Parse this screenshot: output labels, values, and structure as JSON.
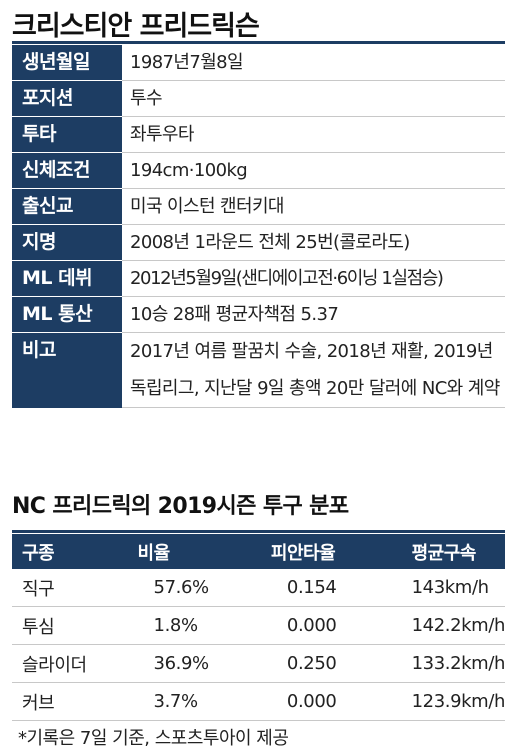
{
  "profile": {
    "title": "크리스티안 프리드릭슨",
    "rows": [
      {
        "label": "생년월일",
        "value": "1987년7월8일"
      },
      {
        "label": "포지션",
        "value": "투수"
      },
      {
        "label": "투타",
        "value": "좌투우타"
      },
      {
        "label": "신체조건",
        "value": "194cm·100kg"
      },
      {
        "label": "출신교",
        "value": "미국 이스턴 캔터키대"
      },
      {
        "label": "지명",
        "value": "2008년 1라운드 전체 25번(콜로라도)"
      },
      {
        "label": "ML 데뷔",
        "value": "2012년5월9일(샌디에이고전·6이닝 1실점승)"
      },
      {
        "label": "ML 통산",
        "value": "10승 28패 평균자책점 5.37"
      },
      {
        "label": "비고",
        "value": "2017년 여름 팔꿈치 수술, 2018년 재활, 2019년 독립리그, 지난달 9일 총액 20만 달러에 NC와 계약"
      }
    ]
  },
  "pitch_table": {
    "title": "NC 프리드릭의 2019시즌 투구 분포",
    "headers": [
      "구종",
      "비율",
      "피안타율",
      "평균구속"
    ],
    "rows": [
      [
        "직구",
        "57.6%",
        "0.154",
        "143km/h"
      ],
      [
        "투심",
        "1.8%",
        "0.000",
        "142.2km/h"
      ],
      [
        "슬라이더",
        "36.9%",
        "0.250",
        "133.2km/h"
      ],
      [
        "커브",
        "3.7%",
        "0.000",
        "123.9km/h"
      ]
    ]
  },
  "footnote": "*기록은 7일 기준, 스포츠투아이 제공",
  "colors": {
    "header_bg": "#1d3d63",
    "divider": "#c8c8c8"
  }
}
